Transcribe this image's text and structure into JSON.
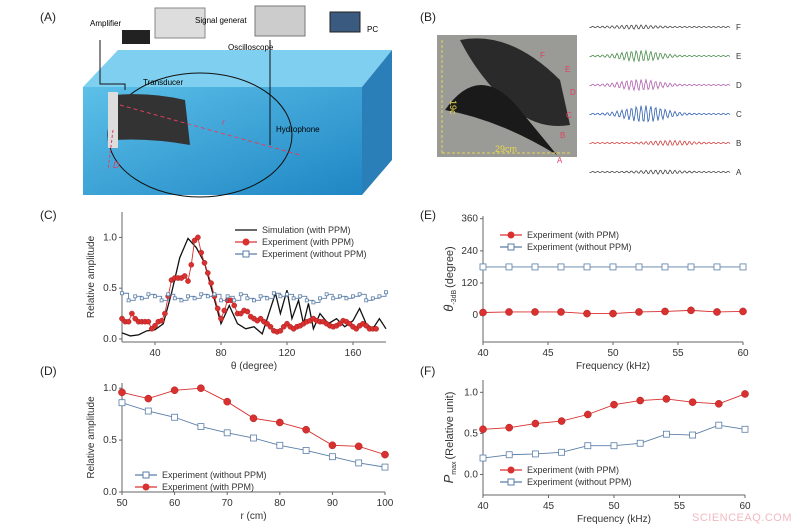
{
  "panels": {
    "A": "(A)",
    "B": "(B)",
    "C": "(C)",
    "D": "(D)",
    "E": "(E)",
    "F": "(F)"
  },
  "setup": {
    "amplifier": "Amplifier",
    "signal_generator": "Signal generat",
    "oscilloscope": "Oscilloscope",
    "pc": "PC",
    "transducer": "Transducer",
    "hydrophone": "Hydrophone",
    "r": "r",
    "D": "D"
  },
  "photo": {
    "height_label": "19c",
    "width_label": "29cm",
    "point_labels": [
      "A",
      "B",
      "C",
      "D",
      "E",
      "F"
    ]
  },
  "waveforms": {
    "labels": [
      "F",
      "E",
      "D",
      "C",
      "B",
      "A"
    ],
    "colors": [
      "#444",
      "#4a8a4a",
      "#b060b0",
      "#3060b0",
      "#d04040",
      "#444"
    ]
  },
  "watermark": "SCIENCEAQ.COM",
  "colors": {
    "with_ppm": "#d93030",
    "without_ppm": "#5a7ea8",
    "simulation": "#111111"
  },
  "chart_data": [
    {
      "id": "C",
      "type": "line",
      "xlabel": "θ (degree)",
      "ylabel": "Relative amplitude",
      "xlim": [
        20,
        180
      ],
      "ylim": [
        -0.03,
        1.25
      ],
      "xticks": [
        40,
        80,
        120,
        160
      ],
      "yticks": [
        0.0,
        0.5,
        1.0
      ],
      "ytick_labels": [
        "0.0",
        "0.5",
        "1.0"
      ],
      "legend": "top-right",
      "series": [
        {
          "name": "Simulation (with PPM)",
          "style": "line",
          "x": [
            20,
            25,
            30,
            35,
            40,
            45,
            50,
            55,
            60,
            65,
            70,
            75,
            80,
            85,
            90,
            95,
            100,
            105,
            110,
            113,
            116,
            120,
            123,
            127,
            130,
            133,
            136,
            140,
            145,
            150,
            155,
            160,
            164,
            168,
            172,
            176,
            180
          ],
          "y": [
            0.06,
            0.03,
            0.04,
            0.08,
            0.09,
            0.15,
            0.45,
            0.8,
            0.99,
            0.9,
            0.75,
            0.45,
            0.15,
            0.33,
            0.15,
            0.1,
            0.12,
            0.05,
            0.3,
            0.45,
            0.25,
            0.48,
            0.2,
            0.38,
            0.15,
            0.35,
            0.1,
            0.25,
            0.15,
            0.2,
            0.12,
            0.18,
            0.3,
            0.15,
            0.1,
            0.2,
            0.1
          ]
        },
        {
          "name": "Experiment (with PPM)",
          "style": "circle",
          "x": [
            20,
            22,
            24,
            26,
            28,
            30,
            32,
            34,
            36,
            38,
            40,
            42,
            44,
            46,
            48,
            50,
            52,
            54,
            56,
            58,
            60,
            62,
            64,
            66,
            68,
            70,
            72,
            74,
            76,
            78,
            80,
            82,
            84,
            86,
            88,
            90,
            92,
            94,
            96,
            98,
            100,
            102,
            104,
            106,
            108,
            110,
            112,
            114,
            116,
            118,
            120,
            122,
            124,
            126,
            128,
            130,
            132,
            134,
            136,
            138,
            140,
            142,
            144,
            146,
            148,
            150,
            152,
            154,
            156,
            158,
            160,
            162,
            164,
            166,
            168,
            170,
            172,
            174
          ],
          "y": [
            0.2,
            0.17,
            0.17,
            0.25,
            0.2,
            0.17,
            0.17,
            0.17,
            0.17,
            0.1,
            0.13,
            0.17,
            0.18,
            0.25,
            0.42,
            0.58,
            0.6,
            0.6,
            0.6,
            0.62,
            0.57,
            0.73,
            0.97,
            1.0,
            0.85,
            0.75,
            0.65,
            0.55,
            0.42,
            0.3,
            0.2,
            0.28,
            0.38,
            0.38,
            0.33,
            0.25,
            0.25,
            0.28,
            0.27,
            0.22,
            0.2,
            0.18,
            0.2,
            0.17,
            0.15,
            0.12,
            0.08,
            0.07,
            0.08,
            0.12,
            0.15,
            0.12,
            0.1,
            0.12,
            0.13,
            0.15,
            0.17,
            0.18,
            0.2,
            0.18,
            0.17,
            0.17,
            0.15,
            0.13,
            0.12,
            0.13,
            0.15,
            0.18,
            0.17,
            0.15,
            0.12,
            0.1,
            0.13,
            0.15,
            0.13,
            0.1,
            0.1,
            0.1
          ]
        },
        {
          "name": "Experiment (without PPM)",
          "style": "step-square",
          "x": [
            20,
            24,
            28,
            32,
            36,
            40,
            44,
            48,
            52,
            56,
            60,
            64,
            68,
            72,
            76,
            80,
            84,
            88,
            92,
            96,
            100,
            104,
            108,
            112,
            116,
            120,
            124,
            128,
            132,
            136,
            140,
            144,
            148,
            152,
            156,
            160,
            164,
            168,
            172,
            176,
            180
          ],
          "y": [
            0.45,
            0.38,
            0.42,
            0.4,
            0.44,
            0.42,
            0.38,
            0.44,
            0.4,
            0.38,
            0.42,
            0.4,
            0.44,
            0.42,
            0.44,
            0.38,
            0.42,
            0.38,
            0.44,
            0.4,
            0.38,
            0.42,
            0.4,
            0.45,
            0.42,
            0.44,
            0.4,
            0.42,
            0.38,
            0.36,
            0.4,
            0.44,
            0.4,
            0.42,
            0.4,
            0.42,
            0.44,
            0.38,
            0.4,
            0.42,
            0.46
          ]
        }
      ]
    },
    {
      "id": "E",
      "type": "line",
      "xlabel": "Frequency (kHz)",
      "ylabel": "θ-3dB (degree)",
      "ylabel_main": "θ",
      "ylabel_sub": "-3dB",
      "ylabel_rest": "(degree)",
      "xlim": [
        40,
        60
      ],
      "ylim": [
        -100,
        370
      ],
      "xticks": [
        40,
        45,
        50,
        55,
        60
      ],
      "yticks": [
        0,
        120,
        240,
        360
      ],
      "ytick_labels": [
        "0",
        "120",
        "240",
        "360"
      ],
      "legend": "top-left",
      "series": [
        {
          "name": "Experiment (with PPM)",
          "style": "circle",
          "x": [
            40,
            42,
            44,
            46,
            48,
            50,
            52,
            54,
            56,
            58,
            60
          ],
          "y": [
            10,
            12,
            12,
            12,
            6,
            6,
            12,
            14,
            18,
            12,
            14
          ]
        },
        {
          "name": "Experiment (without PPM)",
          "style": "square",
          "x": [
            40,
            42,
            44,
            46,
            48,
            50,
            52,
            54,
            56,
            58,
            60
          ],
          "y": [
            180,
            180,
            180,
            180,
            180,
            180,
            180,
            180,
            180,
            180,
            180
          ]
        }
      ]
    },
    {
      "id": "D",
      "type": "line",
      "xlabel": "r (cm)",
      "ylabel": "Relative amplitude",
      "xlim": [
        50,
        100
      ],
      "ylim": [
        0,
        1.05
      ],
      "xticks": [
        50,
        60,
        70,
        80,
        90,
        100
      ],
      "yticks": [
        0.0,
        0.5,
        1.0
      ],
      "ytick_labels": [
        "0.0",
        "0.5",
        "1.0"
      ],
      "legend": "bottom-left",
      "series": [
        {
          "name": "Experiment (without PPM)",
          "style": "square",
          "x": [
            50,
            55,
            60,
            65,
            70,
            75,
            80,
            85,
            90,
            95,
            100
          ],
          "y": [
            0.86,
            0.78,
            0.72,
            0.63,
            0.57,
            0.52,
            0.45,
            0.4,
            0.34,
            0.28,
            0.24
          ]
        },
        {
          "name": "Experiment (with PPM)",
          "style": "circle",
          "x": [
            50,
            55,
            60,
            65,
            70,
            75,
            80,
            85,
            90,
            95,
            100
          ],
          "y": [
            0.96,
            0.9,
            0.98,
            1.0,
            0.87,
            0.71,
            0.67,
            0.6,
            0.45,
            0.44,
            0.36
          ]
        }
      ]
    },
    {
      "id": "F",
      "type": "line",
      "xlabel": "Frequency (kHz)",
      "ylabel": "Pmax (Relative unit)",
      "ylabel_main": "P",
      "ylabel_sub": "max",
      "ylabel_rest": "(Relative unit)",
      "xlim": [
        40,
        60
      ],
      "ylim": [
        -0.25,
        1.15
      ],
      "xticks": [
        40,
        45,
        50,
        55,
        60
      ],
      "yticks": [
        0.0,
        0.5,
        1.0
      ],
      "ytick_labels": [
        "0.0",
        "0.5",
        "1.0"
      ],
      "legend": "bottom-left",
      "series": [
        {
          "name": "Experiment (with PPM)",
          "style": "circle",
          "x": [
            40,
            42,
            44,
            46,
            48,
            50,
            52,
            54,
            56,
            58,
            60
          ],
          "y": [
            0.55,
            0.57,
            0.62,
            0.65,
            0.73,
            0.85,
            0.9,
            0.92,
            0.88,
            0.86,
            0.98
          ]
        },
        {
          "name": "Experiment (without PPM)",
          "style": "square",
          "x": [
            40,
            42,
            44,
            46,
            48,
            50,
            52,
            54,
            56,
            58,
            60
          ],
          "y": [
            0.2,
            0.24,
            0.25,
            0.27,
            0.35,
            0.35,
            0.38,
            0.49,
            0.48,
            0.6,
            0.55
          ]
        }
      ]
    }
  ]
}
